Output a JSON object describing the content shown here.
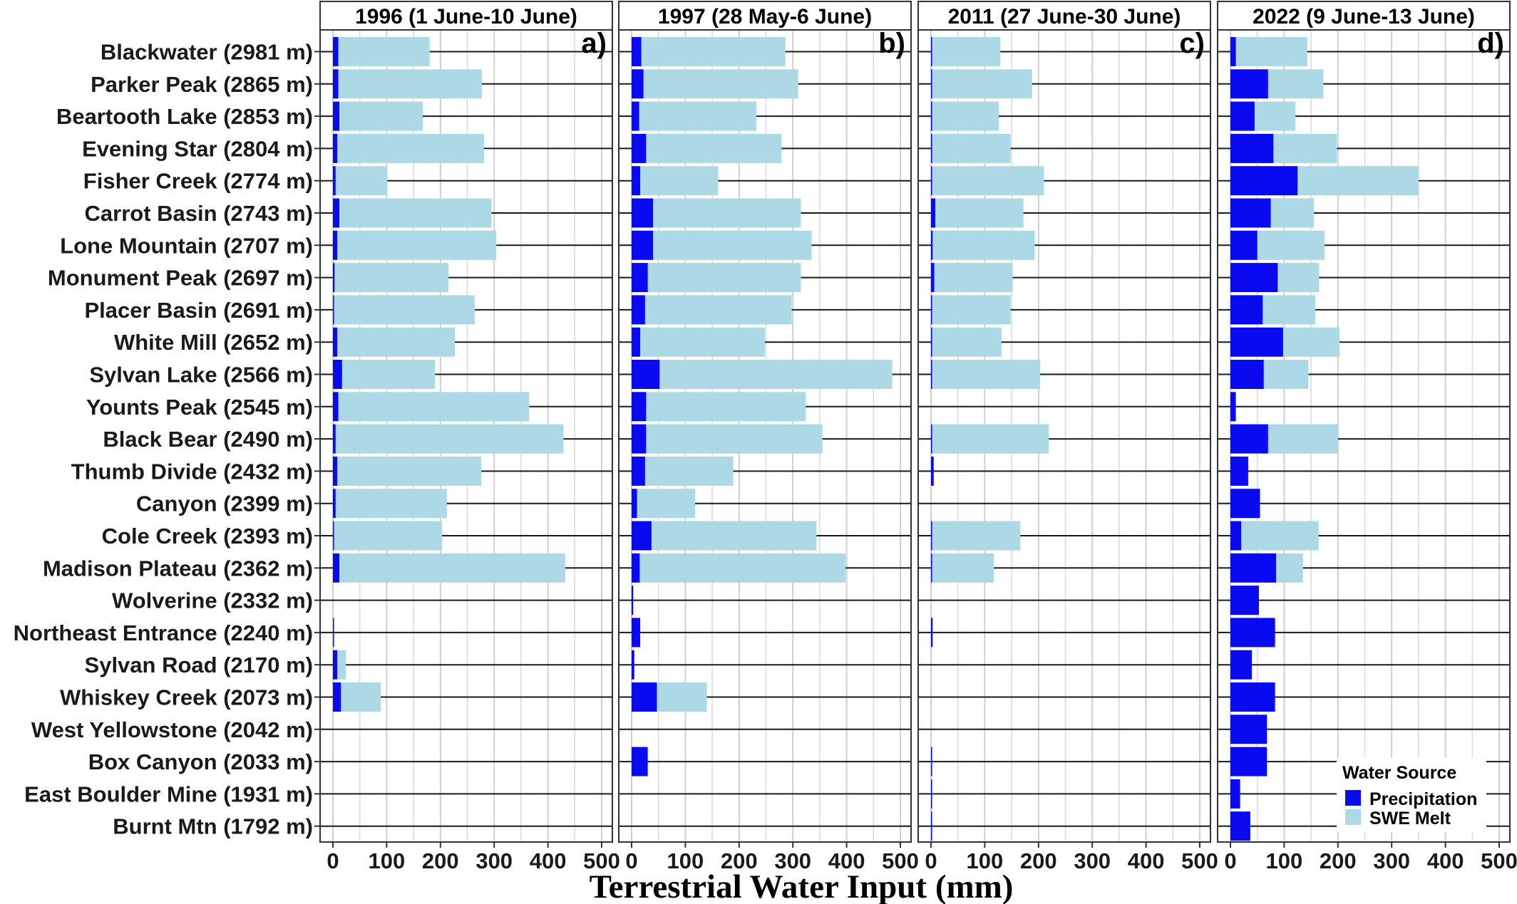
{
  "chart_data": {
    "type": "bar",
    "orientation": "horizontal",
    "stacked": true,
    "xlabel": "Terrestrial Water Input (mm)",
    "xlim": [
      0,
      500
    ],
    "x_ticks": [
      "0",
      "100",
      "200",
      "300",
      "400",
      "500"
    ],
    "grid": true,
    "legend": {
      "title": "Water Source",
      "position": "bottom-right",
      "entries": [
        "Precipitation",
        "SWE Melt"
      ]
    },
    "colors": {
      "Precipitation": "#0a0af0",
      "SWE Melt": "#add8e6"
    },
    "categories": [
      "Blackwater (2981 m)",
      "Parker Peak (2865 m)",
      "Beartooth Lake (2853 m)",
      "Evening Star (2804 m)",
      "Fisher Creek (2774 m)",
      "Carrot Basin (2743 m)",
      "Lone Mountain (2707 m)",
      "Monument Peak (2697 m)",
      "Placer Basin (2691 m)",
      "White Mill (2652 m)",
      "Sylvan Lake (2566 m)",
      "Younts Peak (2545 m)",
      "Black Bear (2490 m)",
      "Thumb Divide (2432 m)",
      "Canyon (2399 m)",
      "Cole Creek (2393 m)",
      "Madison Plateau (2362 m)",
      "Wolverine (2332 m)",
      "Northeast Entrance (2240 m)",
      "Sylvan Road (2170 m)",
      "Whiskey Creek (2073 m)",
      "West Yellowstone (2042 m)",
      "Box Canyon (2033 m)",
      "East Boulder Mine (1931 m)",
      "Burnt Mtn (1792 m)"
    ],
    "panels": [
      {
        "title": "1996 (1 June-10 June)",
        "letter": "a)",
        "series": [
          {
            "name": "Precipitation",
            "values": [
              10,
              10,
              12,
              8,
              5,
              12,
              8,
              3,
              2,
              8,
              17,
              10,
              5,
              8,
              5,
              2,
              12,
              0,
              2,
              8,
              15,
              0,
              0,
              0,
              0
            ]
          },
          {
            "name": "SWE Melt",
            "values": [
              170,
              267,
              155,
              273,
              96,
              283,
              296,
              212,
              262,
              219,
              173,
              355,
              424,
              268,
              207,
              201,
              420,
              0,
              0,
              16,
              74,
              0,
              0,
              0,
              0
            ]
          }
        ]
      },
      {
        "title": "1997 (28 May-6 June)",
        "letter": "b)",
        "series": [
          {
            "name": "Precipitation",
            "values": [
              18,
              22,
              14,
              27,
              16,
              40,
              40,
              30,
              25,
              16,
              52,
              27,
              27,
              25,
              10,
              37,
              15,
              3,
              16,
              5,
              47,
              0,
              30,
              0,
              0
            ]
          },
          {
            "name": "SWE Melt",
            "values": [
              268,
              288,
              218,
              252,
              145,
              275,
              295,
              285,
              273,
              232,
              433,
              297,
              328,
              164,
              108,
              307,
              383,
              0,
              0,
              0,
              93,
              0,
              0,
              0,
              0
            ]
          }
        ]
      },
      {
        "title": "2011 (27 June-30 June)",
        "letter": "c)",
        "series": [
          {
            "name": "Precipitation",
            "values": [
              1,
              2,
              2,
              2,
              2,
              8,
              3,
              6,
              1,
              2,
              1,
              0,
              1,
              5,
              0,
              1,
              1,
              0,
              3,
              0,
              0,
              0,
              2,
              2,
              2
            ]
          },
          {
            "name": "SWE Melt",
            "values": [
              128,
              186,
              124,
              146,
              208,
              164,
              190,
              146,
              147,
              129,
              202,
              0,
              218,
              0,
              0,
              165,
              116,
              0,
              0,
              0,
              0,
              0,
              0,
              0,
              0
            ]
          }
        ]
      },
      {
        "title": "2022 (9 June-13 June)",
        "letter": "d)",
        "series": [
          {
            "name": "Precipitation",
            "values": [
              10,
              70,
              45,
              80,
              125,
              75,
              50,
              88,
              60,
              98,
              62,
              10,
              70,
              33,
              55,
              20,
              85,
              53,
              83,
              40,
              83,
              68,
              68,
              18,
              37
            ]
          },
          {
            "name": "SWE Melt",
            "values": [
              133,
              103,
              76,
              118,
              225,
              80,
              125,
              77,
              98,
              105,
              83,
              0,
              130,
              0,
              0,
              144,
              50,
              0,
              0,
              0,
              0,
              0,
              0,
              0,
              0
            ]
          }
        ]
      }
    ]
  }
}
